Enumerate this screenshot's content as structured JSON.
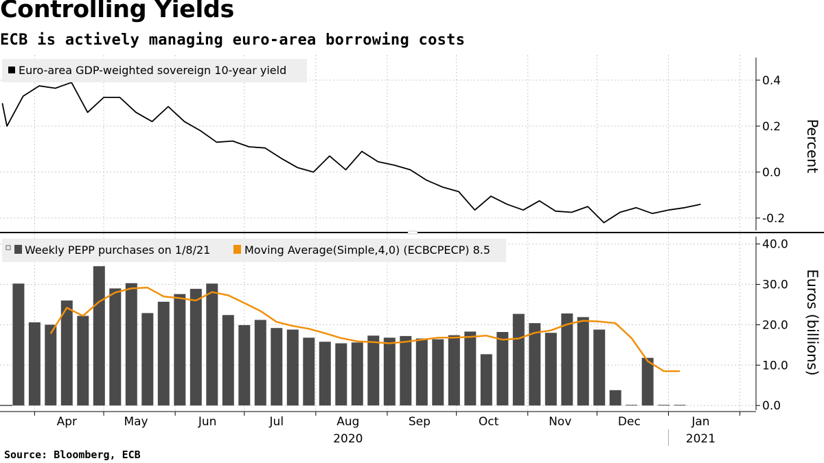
{
  "title": "Controlling Yields",
  "subtitle": "ECB is actively managing euro-area borrowing costs",
  "source": "Source: Bloomberg, ECB",
  "colors": {
    "yield_line": "#000000",
    "bars": "#4a4a4a",
    "moving_avg": "#f0900a",
    "legend_bg": "#eeeeee",
    "grid": "#c8c8c8"
  },
  "chart_data": [
    {
      "type": "line",
      "legend": "Euro-area GDP-weighted sovereign 10-year yield",
      "ylabel": "Percent",
      "ylim": [
        -0.26,
        0.51
      ],
      "yticks": [
        0.4,
        0.2,
        0.0,
        -0.2
      ],
      "ytick_labels": [
        "0.4",
        "0.2",
        "0.0",
        "-0.2"
      ],
      "grid": true,
      "series": [
        {
          "x": [
            "2020-03-18",
            "2020-03-20",
            "2020-03-27",
            "2020-04-03",
            "2020-04-10",
            "2020-04-17",
            "2020-04-24",
            "2020-05-01",
            "2020-05-08",
            "2020-05-15",
            "2020-05-22",
            "2020-05-29",
            "2020-06-05",
            "2020-06-12",
            "2020-06-19",
            "2020-06-26",
            "2020-07-03",
            "2020-07-10",
            "2020-07-17",
            "2020-07-24",
            "2020-07-31",
            "2020-08-07",
            "2020-08-14",
            "2020-08-21",
            "2020-08-28",
            "2020-09-04",
            "2020-09-11",
            "2020-09-18",
            "2020-09-25",
            "2020-10-02",
            "2020-10-09",
            "2020-10-16",
            "2020-10-23",
            "2020-10-30",
            "2020-11-06",
            "2020-11-13",
            "2020-11-20",
            "2020-11-27",
            "2020-12-04",
            "2020-12-11",
            "2020-12-18",
            "2020-12-25",
            "2021-01-01",
            "2021-01-08",
            "2021-01-15"
          ],
          "values": [
            0.3,
            0.2,
            0.33,
            0.375,
            0.365,
            0.39,
            0.26,
            0.325,
            0.325,
            0.26,
            0.22,
            0.285,
            0.22,
            0.18,
            0.13,
            0.135,
            0.11,
            0.105,
            0.06,
            0.02,
            0.0,
            0.07,
            0.01,
            0.09,
            0.045,
            0.03,
            0.01,
            -0.035,
            -0.065,
            -0.085,
            -0.165,
            -0.105,
            -0.14,
            -0.165,
            -0.125,
            -0.17,
            -0.175,
            -0.15,
            -0.22,
            -0.175,
            -0.155,
            -0.18,
            -0.165,
            -0.155,
            -0.14
          ]
        }
      ]
    },
    {
      "type": "bar",
      "legend": "Weekly PEPP purchases on 1/8/21",
      "ylabel": "Euros (billions)",
      "ylim": [
        -1.5,
        42.5
      ],
      "yticks": [
        40,
        30,
        20,
        10,
        0
      ],
      "ytick_labels": [
        "40.0",
        "30.0",
        "20.0",
        "10.0",
        "0.0"
      ],
      "grid": true,
      "x": [
        "2020-03-25",
        "2020-04-01",
        "2020-04-08",
        "2020-04-15",
        "2020-04-22",
        "2020-04-29",
        "2020-05-06",
        "2020-05-13",
        "2020-05-20",
        "2020-05-27",
        "2020-06-03",
        "2020-06-10",
        "2020-06-17",
        "2020-06-24",
        "2020-07-01",
        "2020-07-08",
        "2020-07-15",
        "2020-07-22",
        "2020-07-29",
        "2020-08-05",
        "2020-08-12",
        "2020-08-19",
        "2020-08-26",
        "2020-09-02",
        "2020-09-09",
        "2020-09-16",
        "2020-09-23",
        "2020-09-30",
        "2020-10-07",
        "2020-10-14",
        "2020-10-21",
        "2020-10-28",
        "2020-11-04",
        "2020-11-11",
        "2020-11-18",
        "2020-11-25",
        "2020-12-02",
        "2020-12-09",
        "2020-12-16",
        "2020-12-23",
        "2020-12-30",
        "2021-01-06"
      ],
      "values": [
        30.2,
        20.6,
        20.0,
        26.0,
        22.2,
        34.5,
        29.0,
        30.3,
        22.9,
        25.7,
        27.6,
        28.9,
        30.2,
        22.4,
        19.9,
        21.2,
        19.2,
        18.8,
        16.8,
        15.8,
        15.4,
        15.6,
        17.3,
        16.8,
        17.2,
        16.6,
        16.4,
        17.4,
        18.3,
        12.7,
        18.2,
        22.7,
        20.4,
        18.0,
        22.8,
        21.9,
        18.8,
        3.8,
        0.1,
        11.8,
        0.0,
        0.0
      ],
      "moving_average": {
        "legend": "Moving Average(Simple,4,0) (ECBCPECP) 8.5",
        "x": [
          "2020-04-08",
          "2020-04-15",
          "2020-04-22",
          "2020-04-29",
          "2020-05-06",
          "2020-05-13",
          "2020-05-20",
          "2020-05-27",
          "2020-06-03",
          "2020-06-10",
          "2020-06-17",
          "2020-06-24",
          "2020-07-01",
          "2020-07-08",
          "2020-07-15",
          "2020-07-22",
          "2020-07-29",
          "2020-08-05",
          "2020-08-12",
          "2020-08-19",
          "2020-08-26",
          "2020-09-02",
          "2020-09-09",
          "2020-09-16",
          "2020-09-23",
          "2020-09-30",
          "2020-10-07",
          "2020-10-14",
          "2020-10-21",
          "2020-10-28",
          "2020-11-04",
          "2020-11-11",
          "2020-11-18",
          "2020-11-25",
          "2020-12-02",
          "2020-12-09",
          "2020-12-16",
          "2020-12-23",
          "2020-12-30",
          "2021-01-06"
        ],
        "values": [
          17.8,
          24.2,
          22.2,
          25.7,
          28.0,
          29.0,
          29.2,
          27.0,
          26.6,
          26.0,
          28.1,
          27.3,
          25.4,
          23.4,
          20.7,
          19.7,
          19.0,
          17.9,
          16.7,
          15.9,
          15.7,
          15.4,
          15.8,
          16.3,
          16.8,
          16.8,
          17.0,
          17.3,
          16.3,
          16.6,
          18.0,
          18.6,
          20.1,
          21.0,
          20.8,
          20.4,
          16.7,
          11.0,
          8.5,
          8.5
        ]
      }
    }
  ],
  "x_axis": {
    "month_labels": [
      {
        "date": "2020-04-15",
        "label": "Apr"
      },
      {
        "date": "2020-05-15",
        "label": "May"
      },
      {
        "date": "2020-06-15",
        "label": "Jun"
      },
      {
        "date": "2020-07-15",
        "label": "Jul"
      },
      {
        "date": "2020-08-15",
        "label": "Aug"
      },
      {
        "date": "2020-09-15",
        "label": "Sep"
      },
      {
        "date": "2020-10-15",
        "label": "Oct"
      },
      {
        "date": "2020-11-15",
        "label": "Nov"
      },
      {
        "date": "2020-12-15",
        "label": "Dec"
      },
      {
        "date": "2021-01-15",
        "label": "Jan"
      }
    ],
    "year_labels": [
      {
        "date": "2020-08-15",
        "label": "2020"
      },
      {
        "date": "2021-01-15",
        "label": "2021"
      }
    ],
    "month_ticks": [
      "2020-04-01",
      "2020-05-01",
      "2020-06-01",
      "2020-07-01",
      "2020-08-01",
      "2020-09-01",
      "2020-10-01",
      "2020-11-01",
      "2020-12-01",
      "2021-01-01",
      "2021-02-01"
    ],
    "year_divider": "2021-01-01"
  }
}
